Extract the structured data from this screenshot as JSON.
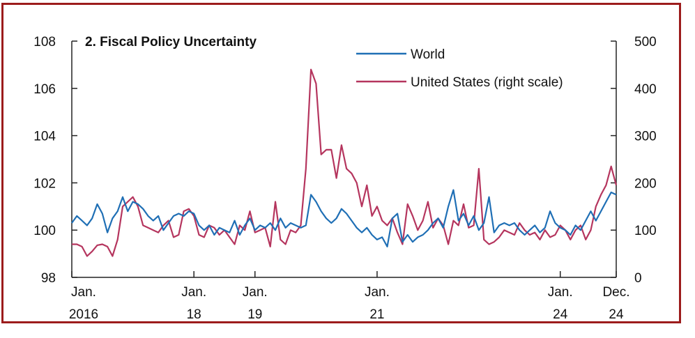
{
  "chart_data": {
    "type": "line",
    "title": "2. Fiscal Policy Uncertainty",
    "colors": {
      "World": "#1f6fb5",
      "United States": "#b5355e",
      "frame": "#9c1c1c"
    },
    "legend_placement": "top-center",
    "grid": false,
    "left_axis": {
      "ylim": [
        98,
        108
      ],
      "ticks": [
        "98",
        "100",
        "102",
        "104",
        "106",
        "108"
      ]
    },
    "right_axis": {
      "ylim": [
        0,
        500
      ],
      "ticks": [
        "0",
        "100",
        "200",
        "300",
        "400",
        "500"
      ]
    },
    "x_axis": {
      "range": [
        "2016-01",
        "2024-12"
      ],
      "ticks": [
        {
          "date": "2016-01",
          "line1": "Jan.",
          "line2": "2016"
        },
        {
          "date": "2018-01",
          "line1": "Jan.",
          "line2": "18"
        },
        {
          "date": "2019-01",
          "line1": "Jan.",
          "line2": "19"
        },
        {
          "date": "2021-01",
          "line1": "Jan.",
          "line2": "21"
        },
        {
          "date": "2024-01",
          "line1": "Jan.",
          "line2": "24"
        },
        {
          "date": "2024-12",
          "line1": "Dec.",
          "line2": "24"
        }
      ]
    },
    "series": [
      {
        "name": "World",
        "axis": "left",
        "points": [
          [
            "2016-01",
            100.3
          ],
          [
            "2016-02",
            100.6
          ],
          [
            "2016-03",
            100.4
          ],
          [
            "2016-04",
            100.2
          ],
          [
            "2016-05",
            100.5
          ],
          [
            "2016-06",
            101.1
          ],
          [
            "2016-07",
            100.7
          ],
          [
            "2016-08",
            99.9
          ],
          [
            "2016-09",
            100.5
          ],
          [
            "2016-10",
            100.8
          ],
          [
            "2016-11",
            101.4
          ],
          [
            "2016-12",
            100.8
          ],
          [
            "2017-01",
            101.2
          ],
          [
            "2017-02",
            101.1
          ],
          [
            "2017-03",
            100.9
          ],
          [
            "2017-04",
            100.6
          ],
          [
            "2017-05",
            100.4
          ],
          [
            "2017-06",
            100.6
          ],
          [
            "2017-07",
            100.0
          ],
          [
            "2017-08",
            100.3
          ],
          [
            "2017-09",
            100.6
          ],
          [
            "2017-10",
            100.7
          ],
          [
            "2017-11",
            100.6
          ],
          [
            "2017-12",
            100.8
          ],
          [
            "2018-01",
            100.7
          ],
          [
            "2018-02",
            100.2
          ],
          [
            "2018-03",
            100.0
          ],
          [
            "2018-04",
            100.2
          ],
          [
            "2018-05",
            99.8
          ],
          [
            "2018-06",
            100.1
          ],
          [
            "2018-07",
            100.0
          ],
          [
            "2018-08",
            99.9
          ],
          [
            "2018-09",
            100.4
          ],
          [
            "2018-10",
            99.8
          ],
          [
            "2018-11",
            100.2
          ],
          [
            "2018-12",
            100.5
          ],
          [
            "2019-01",
            100.0
          ],
          [
            "2019-02",
            100.2
          ],
          [
            "2019-03",
            100.1
          ],
          [
            "2019-04",
            100.3
          ],
          [
            "2019-05",
            100.0
          ],
          [
            "2019-06",
            100.5
          ],
          [
            "2019-07",
            100.1
          ],
          [
            "2019-08",
            100.3
          ],
          [
            "2019-09",
            100.2
          ],
          [
            "2019-10",
            100.1
          ],
          [
            "2019-11",
            100.2
          ],
          [
            "2019-12",
            101.5
          ],
          [
            "2020-01",
            101.2
          ],
          [
            "2020-02",
            100.8
          ],
          [
            "2020-03",
            100.5
          ],
          [
            "2020-04",
            100.3
          ],
          [
            "2020-05",
            100.5
          ],
          [
            "2020-06",
            100.9
          ],
          [
            "2020-07",
            100.7
          ],
          [
            "2020-08",
            100.4
          ],
          [
            "2020-09",
            100.1
          ],
          [
            "2020-10",
            99.9
          ],
          [
            "2020-11",
            100.1
          ],
          [
            "2020-12",
            99.8
          ],
          [
            "2021-01",
            99.6
          ],
          [
            "2021-02",
            99.7
          ],
          [
            "2021-03",
            99.3
          ],
          [
            "2021-04",
            100.5
          ],
          [
            "2021-05",
            100.7
          ],
          [
            "2021-06",
            99.5
          ],
          [
            "2021-07",
            99.8
          ],
          [
            "2021-08",
            99.5
          ],
          [
            "2021-09",
            99.7
          ],
          [
            "2021-10",
            99.8
          ],
          [
            "2021-11",
            100.0
          ],
          [
            "2021-12",
            100.3
          ],
          [
            "2022-01",
            100.5
          ],
          [
            "2022-02",
            100.1
          ],
          [
            "2022-03",
            101.0
          ],
          [
            "2022-04",
            101.7
          ],
          [
            "2022-05",
            100.4
          ],
          [
            "2022-06",
            100.7
          ],
          [
            "2022-07",
            100.2
          ],
          [
            "2022-08",
            100.6
          ],
          [
            "2022-09",
            100.0
          ],
          [
            "2022-10",
            100.3
          ],
          [
            "2022-11",
            101.4
          ],
          [
            "2022-12",
            99.9
          ],
          [
            "2023-01",
            100.2
          ],
          [
            "2023-02",
            100.3
          ],
          [
            "2023-03",
            100.2
          ],
          [
            "2023-04",
            100.3
          ],
          [
            "2023-05",
            100.0
          ],
          [
            "2023-06",
            99.8
          ],
          [
            "2023-07",
            100.0
          ],
          [
            "2023-08",
            100.2
          ],
          [
            "2023-09",
            99.9
          ],
          [
            "2023-10",
            100.1
          ],
          [
            "2023-11",
            100.8
          ],
          [
            "2023-12",
            100.3
          ],
          [
            "2024-01",
            100.1
          ],
          [
            "2024-02",
            100.0
          ],
          [
            "2024-03",
            99.8
          ],
          [
            "2024-04",
            100.2
          ],
          [
            "2024-05",
            100.0
          ],
          [
            "2024-06",
            100.4
          ],
          [
            "2024-07",
            100.8
          ],
          [
            "2024-08",
            100.4
          ],
          [
            "2024-09",
            100.8
          ],
          [
            "2024-10",
            101.2
          ],
          [
            "2024-11",
            101.6
          ],
          [
            "2024-12",
            101.5
          ]
        ]
      },
      {
        "name": "United States (right scale)",
        "axis": "right",
        "points": [
          [
            "2016-01",
            70
          ],
          [
            "2016-02",
            70
          ],
          [
            "2016-03",
            65
          ],
          [
            "2016-04",
            45
          ],
          [
            "2016-05",
            55
          ],
          [
            "2016-06",
            68
          ],
          [
            "2016-07",
            70
          ],
          [
            "2016-08",
            65
          ],
          [
            "2016-09",
            45
          ],
          [
            "2016-10",
            80
          ],
          [
            "2016-11",
            150
          ],
          [
            "2016-12",
            160
          ],
          [
            "2017-01",
            170
          ],
          [
            "2017-02",
            150
          ],
          [
            "2017-03",
            110
          ],
          [
            "2017-04",
            105
          ],
          [
            "2017-05",
            100
          ],
          [
            "2017-06",
            95
          ],
          [
            "2017-07",
            110
          ],
          [
            "2017-08",
            120
          ],
          [
            "2017-09",
            85
          ],
          [
            "2017-10",
            90
          ],
          [
            "2017-11",
            140
          ],
          [
            "2017-12",
            145
          ],
          [
            "2018-01",
            130
          ],
          [
            "2018-02",
            90
          ],
          [
            "2018-03",
            85
          ],
          [
            "2018-04",
            110
          ],
          [
            "2018-05",
            105
          ],
          [
            "2018-06",
            90
          ],
          [
            "2018-07",
            100
          ],
          [
            "2018-08",
            85
          ],
          [
            "2018-09",
            70
          ],
          [
            "2018-10",
            110
          ],
          [
            "2018-11",
            100
          ],
          [
            "2018-12",
            140
          ],
          [
            "2019-01",
            95
          ],
          [
            "2019-02",
            100
          ],
          [
            "2019-03",
            105
          ],
          [
            "2019-04",
            65
          ],
          [
            "2019-05",
            160
          ],
          [
            "2019-06",
            80
          ],
          [
            "2019-07",
            70
          ],
          [
            "2019-08",
            100
          ],
          [
            "2019-09",
            95
          ],
          [
            "2019-10",
            110
          ],
          [
            "2019-11",
            230
          ],
          [
            "2019-12",
            440
          ],
          [
            "2020-01",
            410
          ],
          [
            "2020-02",
            260
          ],
          [
            "2020-03",
            270
          ],
          [
            "2020-04",
            270
          ],
          [
            "2020-05",
            210
          ],
          [
            "2020-06",
            280
          ],
          [
            "2020-07",
            230
          ],
          [
            "2020-08",
            220
          ],
          [
            "2020-09",
            200
          ],
          [
            "2020-10",
            150
          ],
          [
            "2020-11",
            195
          ],
          [
            "2020-12",
            130
          ],
          [
            "2021-01",
            150
          ],
          [
            "2021-02",
            120
          ],
          [
            "2021-03",
            110
          ],
          [
            "2021-04",
            125
          ],
          [
            "2021-05",
            95
          ],
          [
            "2021-06",
            70
          ],
          [
            "2021-07",
            155
          ],
          [
            "2021-08",
            130
          ],
          [
            "2021-09",
            100
          ],
          [
            "2021-10",
            120
          ],
          [
            "2021-11",
            160
          ],
          [
            "2021-12",
            105
          ],
          [
            "2022-01",
            125
          ],
          [
            "2022-02",
            110
          ],
          [
            "2022-03",
            70
          ],
          [
            "2022-04",
            120
          ],
          [
            "2022-05",
            110
          ],
          [
            "2022-06",
            155
          ],
          [
            "2022-07",
            105
          ],
          [
            "2022-08",
            110
          ],
          [
            "2022-09",
            230
          ],
          [
            "2022-10",
            80
          ],
          [
            "2022-11",
            70
          ],
          [
            "2022-12",
            75
          ],
          [
            "2023-01",
            85
          ],
          [
            "2023-02",
            100
          ],
          [
            "2023-03",
            95
          ],
          [
            "2023-04",
            90
          ],
          [
            "2023-05",
            115
          ],
          [
            "2023-06",
            100
          ],
          [
            "2023-07",
            90
          ],
          [
            "2023-08",
            95
          ],
          [
            "2023-09",
            80
          ],
          [
            "2023-10",
            100
          ],
          [
            "2023-11",
            85
          ],
          [
            "2023-12",
            90
          ],
          [
            "2024-01",
            110
          ],
          [
            "2024-02",
            100
          ],
          [
            "2024-03",
            80
          ],
          [
            "2024-04",
            100
          ],
          [
            "2024-05",
            110
          ],
          [
            "2024-06",
            80
          ],
          [
            "2024-07",
            100
          ],
          [
            "2024-08",
            150
          ],
          [
            "2024-09",
            175
          ],
          [
            "2024-10",
            195
          ],
          [
            "2024-11",
            235
          ],
          [
            "2024-12",
            195
          ]
        ]
      }
    ]
  },
  "legend": [
    {
      "key": "World",
      "label": "World",
      "color": "#1f6fb5"
    },
    {
      "key": "US",
      "label": "United States (right scale)",
      "color": "#b5355e"
    }
  ]
}
